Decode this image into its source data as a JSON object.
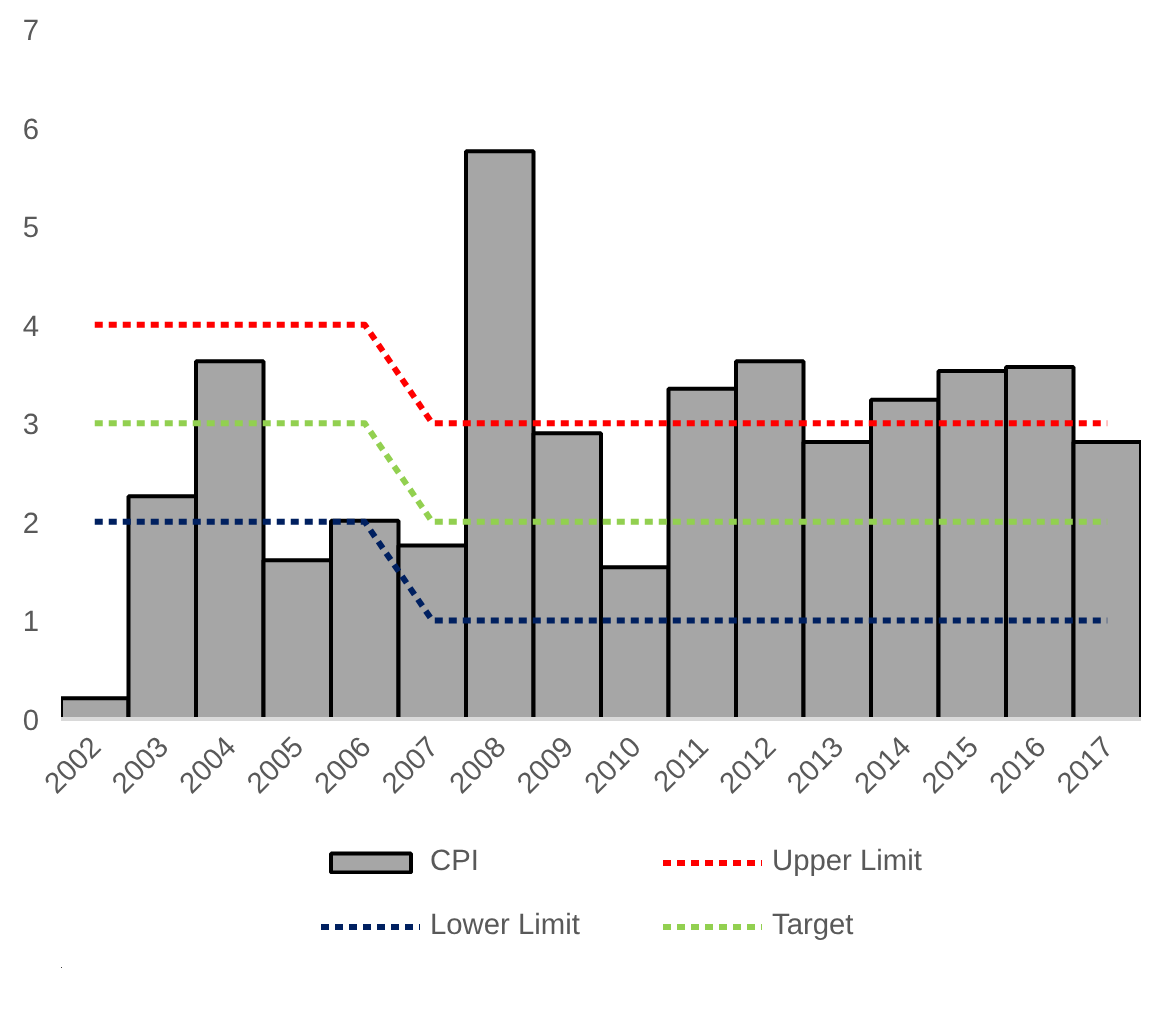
{
  "chart_data": {
    "type": "bar",
    "categories": [
      "2002",
      "2003",
      "2004",
      "2005",
      "2006",
      "2007",
      "2008",
      "2009",
      "2010",
      "2011",
      "2012",
      "2013",
      "2014",
      "2015",
      "2016",
      "2017"
    ],
    "series": [
      {
        "name": "CPI",
        "color": "#a6a6a6",
        "values": [
          0.21,
          2.26,
          3.63,
          1.61,
          2.01,
          1.76,
          5.76,
          2.9,
          1.54,
          3.35,
          3.63,
          2.81,
          3.24,
          3.53,
          3.57,
          2.81
        ]
      },
      {
        "name": "Upper Limit",
        "type": "line",
        "color": "#ff0000",
        "line_style": "dashed",
        "values": [
          4,
          4,
          4,
          4,
          4,
          3,
          3,
          3,
          3,
          3,
          3,
          3,
          3,
          3,
          3,
          3
        ]
      },
      {
        "name": "Lower Limit",
        "type": "line",
        "color": "#002060",
        "line_style": "dashed",
        "values": [
          2,
          2,
          2,
          2,
          2,
          1,
          1,
          1,
          1,
          1,
          1,
          1,
          1,
          1,
          1,
          1
        ]
      },
      {
        "name": "Target",
        "type": "line",
        "color": "#92d050",
        "line_style": "dashed",
        "values": [
          3,
          3,
          3,
          3,
          3,
          2,
          2,
          2,
          2,
          2,
          2,
          2,
          2,
          2,
          2,
          2
        ]
      }
    ],
    "ylim": [
      0,
      7
    ],
    "yticks": [
      0,
      1,
      2,
      3,
      4,
      5,
      6,
      7
    ],
    "grid": false,
    "legend": "bottom"
  }
}
